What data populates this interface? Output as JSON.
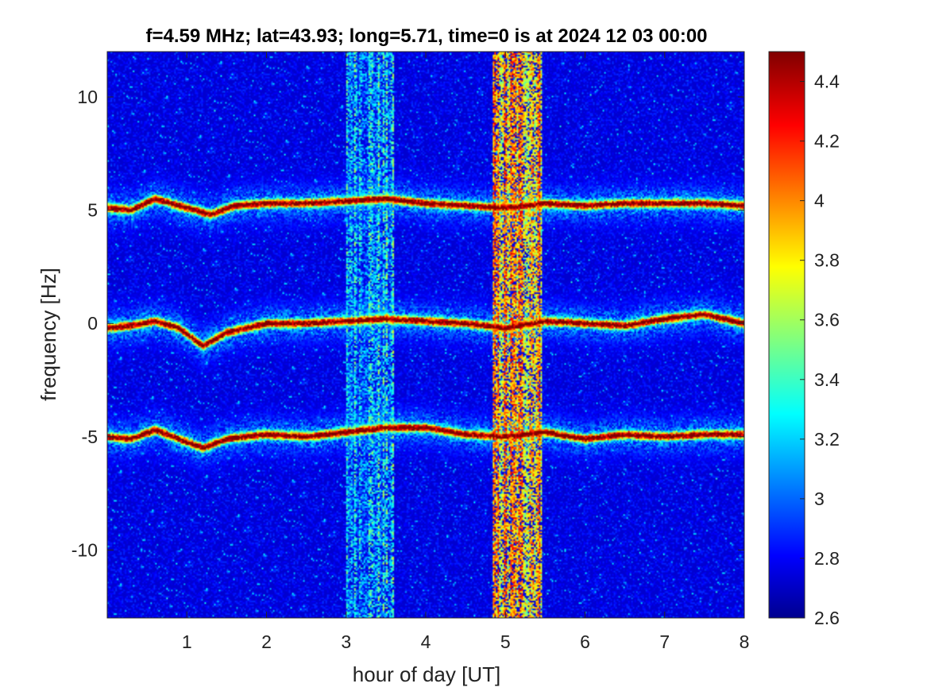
{
  "chart_data": {
    "type": "heatmap",
    "title": "f=4.59 MHz;  lat=43.93; long=5.71, time=0 is at 2024 12 03 00:00",
    "xlabel": "hour of day [UT]",
    "ylabel": "frequency [Hz]",
    "xlim": [
      0,
      8
    ],
    "ylim": [
      -13,
      12
    ],
    "x_ticks": [
      1,
      2,
      3,
      4,
      5,
      6,
      7,
      8
    ],
    "x_tick_labels": [
      "1",
      "2",
      "3",
      "4",
      "5",
      "6",
      "7",
      "8"
    ],
    "y_ticks": [
      10,
      5,
      0,
      -5,
      -10
    ],
    "y_tick_labels": [
      "10",
      "5",
      "0",
      "-5",
      "-10"
    ],
    "colorbar": {
      "range": [
        2.6,
        4.5
      ],
      "ticks": [
        4.4,
        4.2,
        4,
        3.8,
        3.6,
        3.4,
        3.2,
        3,
        2.8,
        2.6
      ],
      "tick_labels": [
        "4.4",
        "4.2",
        "4",
        "3.8",
        "3.6",
        "3.4",
        "3.2",
        "3",
        "2.8",
        "2.6"
      ],
      "colormap": "jet"
    },
    "background_level": 2.75,
    "traces": [
      {
        "center_hz": 5.2,
        "nodes_x": [
          0,
          0.3,
          0.6,
          0.9,
          1.3,
          1.6,
          2,
          2.5,
          3,
          3.5,
          4,
          4.5,
          5,
          5.5,
          6,
          6.5,
          7,
          7.5,
          8
        ],
        "nodes_y": [
          5.1,
          5,
          5.5,
          5.2,
          4.8,
          5.2,
          5.3,
          5.3,
          5.4,
          5.5,
          5.3,
          5.2,
          5.1,
          5.3,
          5.2,
          5.3,
          5.3,
          5.3,
          5.2
        ]
      },
      {
        "center_hz": 0,
        "nodes_x": [
          0,
          0.3,
          0.6,
          0.9,
          1.2,
          1.5,
          2,
          2.5,
          3,
          3.5,
          4,
          4.5,
          5,
          5.5,
          6,
          6.5,
          7,
          7.5,
          8
        ],
        "nodes_y": [
          -0.2,
          -0.1,
          0.1,
          -0.2,
          -1,
          -0.4,
          0,
          0,
          0.1,
          0.2,
          0.1,
          0,
          -0.2,
          0.1,
          0,
          -0.1,
          0.2,
          0.4,
          0
        ]
      },
      {
        "center_hz": -5,
        "nodes_x": [
          0,
          0.3,
          0.6,
          0.9,
          1.2,
          1.5,
          2,
          2.5,
          3,
          3.5,
          4,
          4.5,
          5,
          5.5,
          6,
          6.5,
          7,
          7.5,
          8
        ],
        "nodes_y": [
          -5,
          -5.1,
          -4.7,
          -5.1,
          -5.5,
          -5.1,
          -4.9,
          -5,
          -4.8,
          -4.6,
          -4.6,
          -4.9,
          -5,
          -4.8,
          -5.1,
          -4.9,
          -5,
          -4.9,
          -4.9
        ]
      }
    ],
    "broadband_bands": [
      {
        "x_start": 3.0,
        "x_end": 3.6,
        "level": 3.2
      },
      {
        "x_start": 4.85,
        "x_end": 5.45,
        "level": 3.9
      }
    ]
  }
}
